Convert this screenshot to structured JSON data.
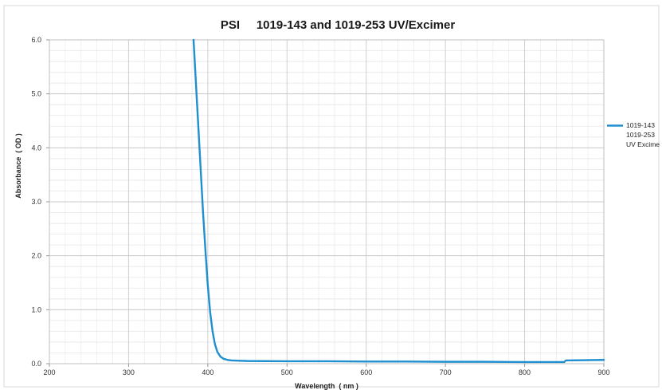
{
  "chart_data": {
    "type": "line",
    "title": "PSI     1019-143 and 1019-253 UV/Excimer",
    "xlabel": "Wavelength  ( nm )",
    "ylabel": "Absorbance  ( OD )",
    "xlim": [
      200,
      900
    ],
    "ylim": [
      0.0,
      6.0
    ],
    "x_ticks": [
      "200",
      "300",
      "400",
      "500",
      "600",
      "700",
      "800",
      "900"
    ],
    "y_ticks": [
      "0.0",
      "1.0",
      "2.0",
      "3.0",
      "4.0",
      "5.0",
      "6.0"
    ],
    "grid": true,
    "legend_position": "right",
    "series": [
      {
        "name": "1019-143 1019-253 UV Excime",
        "color": "#1f8fd0",
        "x": [
          382,
          385,
          388,
          391,
          394,
          397,
          400,
          403,
          406,
          409,
          412,
          416,
          420,
          425,
          430,
          440,
          450,
          500,
          550,
          600,
          650,
          700,
          750,
          800,
          850,
          852,
          900
        ],
        "y": [
          6.0,
          5.2,
          4.4,
          3.6,
          2.8,
          2.1,
          1.45,
          0.95,
          0.6,
          0.36,
          0.22,
          0.13,
          0.09,
          0.07,
          0.06,
          0.055,
          0.05,
          0.045,
          0.045,
          0.04,
          0.04,
          0.035,
          0.035,
          0.03,
          0.03,
          0.06,
          0.07
        ]
      }
    ]
  },
  "legend": {
    "lines": [
      "1019-143",
      "1019-253",
      "UV Excime"
    ]
  }
}
